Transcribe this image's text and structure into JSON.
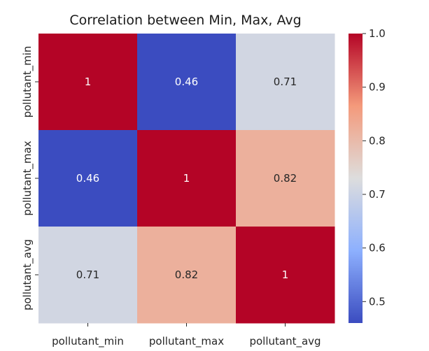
{
  "chart_data": {
    "type": "heatmap",
    "title": "Correlation between Min, Max, Avg",
    "x_categories": [
      "pollutant_min",
      "pollutant_max",
      "pollutant_avg"
    ],
    "y_categories": [
      "pollutant_min",
      "pollutant_max",
      "pollutant_avg"
    ],
    "values": [
      [
        1.0,
        0.46,
        0.71
      ],
      [
        0.46,
        1.0,
        0.82
      ],
      [
        0.71,
        0.82,
        1.0
      ]
    ],
    "annotations": [
      [
        "1",
        "0.46",
        "0.71"
      ],
      [
        "0.46",
        "1",
        "0.82"
      ],
      [
        "0.71",
        "0.82",
        "1"
      ]
    ],
    "colormap": "coolwarm",
    "colorbar": {
      "vmin": 0.46,
      "vmax": 1.0,
      "ticks": [
        0.5,
        0.6,
        0.7,
        0.8,
        0.9,
        1.0
      ],
      "tick_labels": [
        "0.5",
        "0.6",
        "0.7",
        "0.8",
        "0.9",
        "1.0"
      ]
    },
    "colors": {
      "low": "#3b4cc0",
      "mid": "#dddddd",
      "high": "#b40426"
    }
  }
}
